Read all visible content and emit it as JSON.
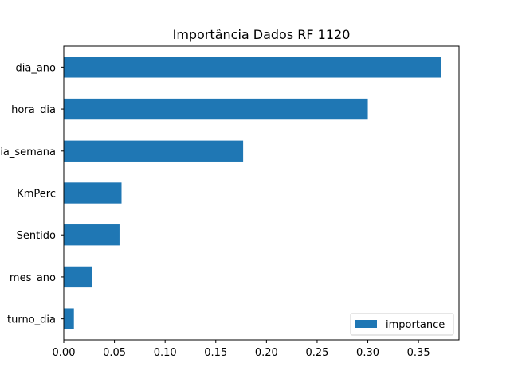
{
  "chart_data": {
    "type": "bar",
    "orientation": "horizontal",
    "title": "Importância Dados RF 1120",
    "xlabel": "",
    "ylabel": "",
    "categories": [
      "dia_ano",
      "hora_dia",
      "dia_semana",
      "KmPerc",
      "Sentido",
      "mes_ano",
      "turno_dia"
    ],
    "series": [
      {
        "name": "importance",
        "color": "#1f77b4",
        "values": [
          0.372,
          0.3,
          0.177,
          0.057,
          0.055,
          0.028,
          0.01
        ]
      }
    ],
    "xlim": [
      0,
      0.39
    ],
    "x_ticks": [
      0.0,
      0.05,
      0.1,
      0.15,
      0.2,
      0.25,
      0.3,
      0.35
    ],
    "x_tick_labels": [
      "0.00",
      "0.05",
      "0.10",
      "0.15",
      "0.20",
      "0.25",
      "0.30",
      "0.35"
    ],
    "grid": false,
    "legend_position": "lower-right"
  }
}
